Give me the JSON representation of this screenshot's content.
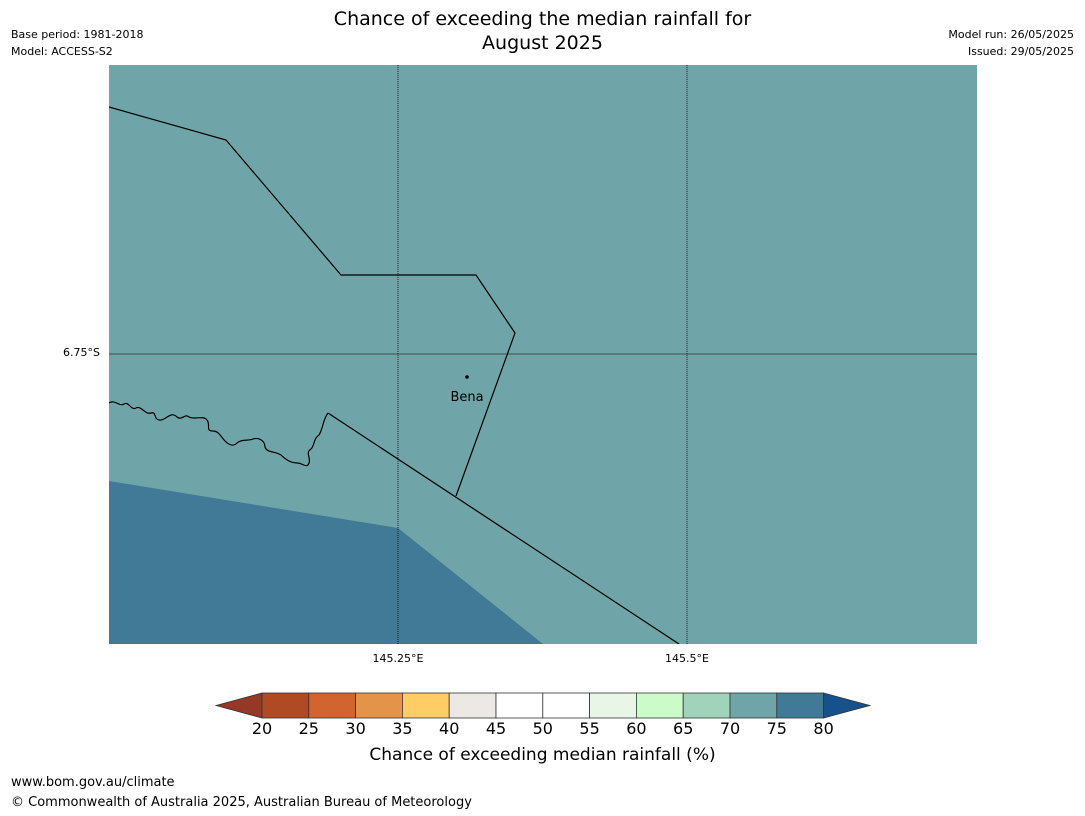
{
  "header": {
    "title_line1": "Chance of exceeding the median rainfall for",
    "title_line2": "August 2025",
    "base_period": "Base period: 1981-2018",
    "model": "Model: ACCESS-S2",
    "model_run": "Model run: 26/05/2025",
    "issued": "Issued: 29/05/2025"
  },
  "map": {
    "lat_label": "6.75°S",
    "lon_labels": [
      "145.25°E",
      "145.5°E"
    ],
    "place_label": "Bena",
    "colors": {
      "land_main": "#6fa5a8",
      "land_high": "#417a97",
      "border": "#000000"
    }
  },
  "legend": {
    "title": "Chance of exceeding median rainfall (%)",
    "ticks": [
      "20",
      "25",
      "30",
      "35",
      "40",
      "45",
      "50",
      "55",
      "60",
      "65",
      "70",
      "75",
      "80"
    ],
    "colors": {
      "under": "#963826",
      "bins": [
        "#b04a24",
        "#d1642f",
        "#e4944a",
        "#ffcc66",
        "#ece8e4",
        "#ffffff",
        "#ffffff",
        "#e8f6e7",
        "#ccfbca",
        "#a1d2ba",
        "#6fa5a8",
        "#417a97"
      ],
      "over": "#165289"
    }
  },
  "footer": {
    "url": "www.bom.gov.au/climate",
    "copyright": "© Commonwealth of Australia 2025, Australian Bureau of Meteorology"
  }
}
